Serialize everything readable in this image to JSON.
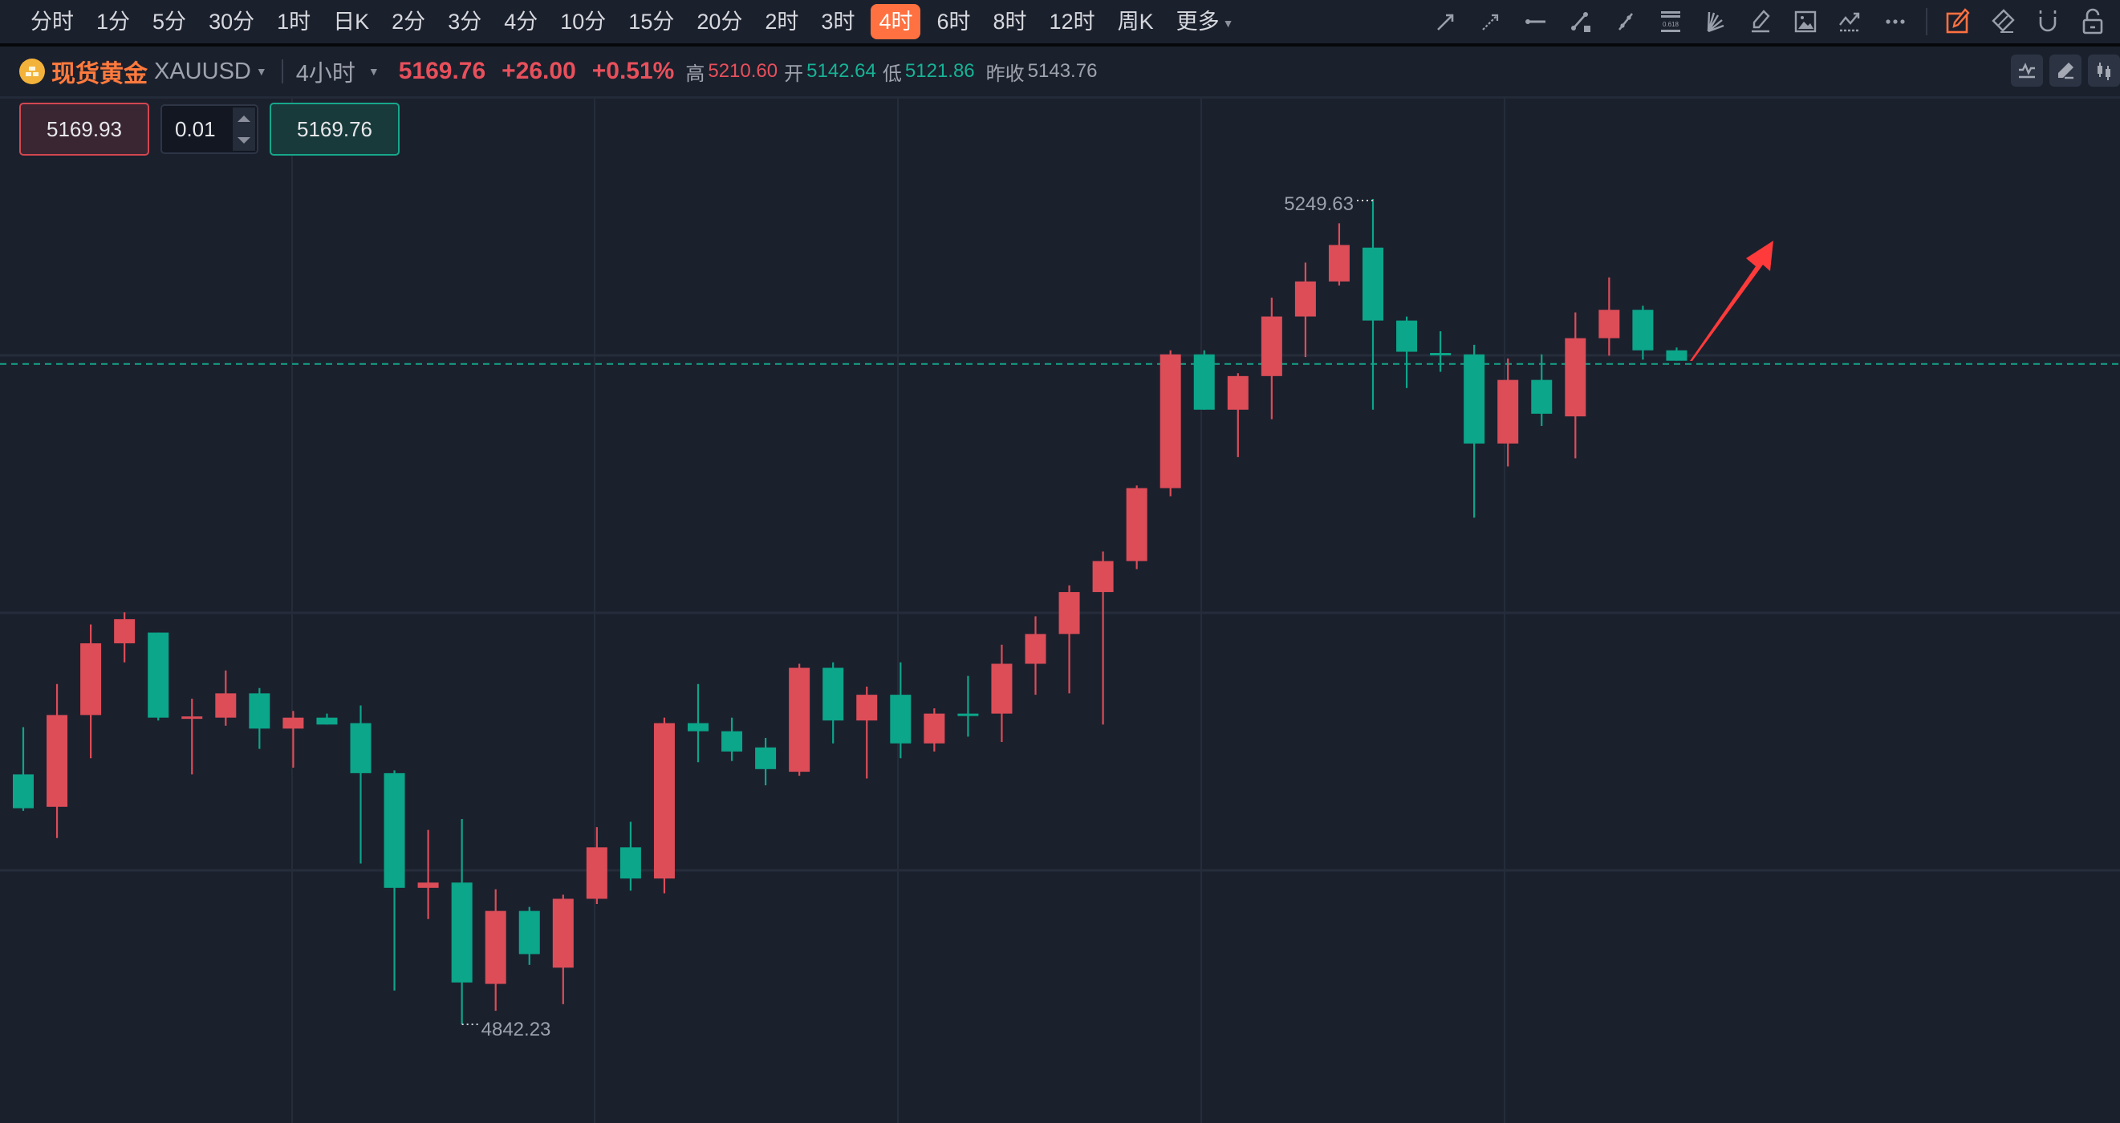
{
  "toolbar": {
    "periods": [
      {
        "label": "分时",
        "active": false
      },
      {
        "label": "1分",
        "active": false
      },
      {
        "label": "5分",
        "active": false
      },
      {
        "label": "30分",
        "active": false
      },
      {
        "label": "1时",
        "active": false
      },
      {
        "label": "日K",
        "active": false
      },
      {
        "label": "2分",
        "active": false
      },
      {
        "label": "3分",
        "active": false
      },
      {
        "label": "4分",
        "active": false
      },
      {
        "label": "10分",
        "active": false
      },
      {
        "label": "15分",
        "active": false
      },
      {
        "label": "20分",
        "active": false
      },
      {
        "label": "2时",
        "active": false
      },
      {
        "label": "3时",
        "active": false
      },
      {
        "label": "4时",
        "active": true
      },
      {
        "label": "6时",
        "active": false
      },
      {
        "label": "8时",
        "active": false
      },
      {
        "label": "12时",
        "active": false
      },
      {
        "label": "周K",
        "active": false
      },
      {
        "label": "更多",
        "active": false
      }
    ],
    "drawing_tools": [
      "trend-line-icon",
      "extended-line-icon",
      "horizontal-line-icon",
      "ray-icon",
      "parallel-channel-icon",
      "fibonacci-icon",
      "fan-icon",
      "highlighter-icon",
      "image-icon",
      "polyline-icon",
      "more-icon",
      "draw-mode-icon",
      "eraser-icon",
      "magnet-icon",
      "lock-icon"
    ],
    "active_tool": "draw-mode-icon",
    "accent_color": "#ff7140"
  },
  "symbol": {
    "name": "现货黄金",
    "code": "XAUUSD",
    "interval": "4小时",
    "last_price": "5169.76",
    "change": "+26.00",
    "change_pct": "+0.51%",
    "high_label": "高",
    "high": "5210.60",
    "open_label": "开",
    "open": "5142.64",
    "low_label": "低",
    "low": "5121.86",
    "prev_close_label": "昨收",
    "prev_close": "5143.76"
  },
  "right_buttons": [
    "indicator-icon",
    "draw-icon",
    "candle-type-icon"
  ],
  "trade": {
    "sell_price": "5169.93",
    "quantity": "0.01",
    "buy_price": "5169.76"
  },
  "colors": {
    "up": "#dc4d58",
    "down": "#0ca68a",
    "background": "#1b202d",
    "grid": "#252c3a",
    "arrow": "#ff3a3a"
  },
  "chart_data": {
    "type": "candlestick",
    "title": "现货黄金 XAUUSD 4小时",
    "xlabel": "",
    "ylabel": "",
    "convention": "red = up, green = down",
    "annotations": [
      {
        "label": "5249.63",
        "type": "max-high",
        "index": 40
      },
      {
        "label": "4842.23",
        "type": "min-low",
        "index": 13
      }
    ],
    "current_price_line": 5169.76,
    "ylim": [
      4780,
      5330
    ],
    "grid": true,
    "candles": [
      {
        "o": 4965.6,
        "h": 4988.9,
        "l": 4947.6,
        "c": 4948.9
      },
      {
        "o": 4949.6,
        "h": 5010.2,
        "l": 4934.2,
        "c": 4994.9
      },
      {
        "o": 4994.9,
        "h": 5039.6,
        "l": 4973.6,
        "c": 5030.3
      },
      {
        "o": 5030.3,
        "h": 5045.6,
        "l": 5020.9,
        "c": 5042.2
      },
      {
        "o": 5035.6,
        "h": 5035.6,
        "l": 4992.2,
        "c": 4993.6
      },
      {
        "o": 4993.6,
        "h": 5002.9,
        "l": 4965.6,
        "c": 4994.2
      },
      {
        "o": 4993.6,
        "h": 5016.9,
        "l": 4989.6,
        "c": 5005.6
      },
      {
        "o": 5005.6,
        "h": 5008.2,
        "l": 4978.2,
        "c": 4988.2
      },
      {
        "o": 4988.2,
        "h": 4996.9,
        "l": 4968.9,
        "c": 4993.6
      },
      {
        "o": 4993.6,
        "h": 4995.6,
        "l": 4990.2,
        "c": 4990.2
      },
      {
        "o": 4990.9,
        "h": 4999.6,
        "l": 4921.6,
        "c": 4966.2
      },
      {
        "o": 4966.2,
        "h": 4967.6,
        "l": 4858.9,
        "c": 4909.6
      },
      {
        "o": 4909.6,
        "h": 4938.2,
        "l": 4894.2,
        "c": 4912.2
      },
      {
        "o": 4912.2,
        "h": 4943.6,
        "l": 4842.23,
        "c": 4862.9
      },
      {
        "o": 4862.2,
        "h": 4908.9,
        "l": 4848.9,
        "c": 4898.2
      },
      {
        "o": 4898.2,
        "h": 4900.2,
        "l": 4871.6,
        "c": 4876.9
      },
      {
        "o": 4870.2,
        "h": 4906.2,
        "l": 4852.2,
        "c": 4904.2
      },
      {
        "o": 4904.2,
        "h": 4939.6,
        "l": 4901.6,
        "c": 4929.6
      },
      {
        "o": 4929.6,
        "h": 4942.2,
        "l": 4908.2,
        "c": 4914.2
      },
      {
        "o": 4914.2,
        "h": 4993.6,
        "l": 4906.9,
        "c": 4990.9
      },
      {
        "o": 4990.9,
        "h": 5010.2,
        "l": 4971.6,
        "c": 4986.9
      },
      {
        "o": 4986.9,
        "h": 4993.6,
        "l": 4972.2,
        "c": 4976.9
      },
      {
        "o": 4978.9,
        "h": 4983.6,
        "l": 4960.2,
        "c": 4968.2
      },
      {
        "o": 4966.9,
        "h": 5020.2,
        "l": 4964.9,
        "c": 5018.2
      },
      {
        "o": 5018.2,
        "h": 5020.9,
        "l": 4980.9,
        "c": 4992.2
      },
      {
        "o": 4992.2,
        "h": 5008.9,
        "l": 4963.6,
        "c": 5004.9
      },
      {
        "o": 5004.9,
        "h": 5020.9,
        "l": 4973.6,
        "c": 4980.9
      },
      {
        "o": 4980.9,
        "h": 4998.2,
        "l": 4976.9,
        "c": 4995.6
      },
      {
        "o": 4995.6,
        "h": 5014.2,
        "l": 4984.2,
        "c": 4994.6
      },
      {
        "o": 4995.6,
        "h": 5029.6,
        "l": 4981.6,
        "c": 5020.2
      },
      {
        "o": 5020.2,
        "h": 5043.6,
        "l": 5004.9,
        "c": 5034.9
      },
      {
        "o": 5034.9,
        "h": 5058.9,
        "l": 5005.6,
        "c": 5055.6
      },
      {
        "o": 5055.6,
        "h": 5075.6,
        "l": 4990.2,
        "c": 5070.9
      },
      {
        "o": 5070.9,
        "h": 5108.2,
        "l": 5066.9,
        "c": 5106.9
      },
      {
        "o": 5106.9,
        "h": 5174.9,
        "l": 5102.9,
        "c": 5172.9
      },
      {
        "o": 5172.9,
        "h": 5174.9,
        "l": 5145.6,
        "c": 5145.6
      },
      {
        "o": 5145.6,
        "h": 5163.6,
        "l": 5122.2,
        "c": 5162.2
      },
      {
        "o": 5162.2,
        "h": 5200.9,
        "l": 5140.9,
        "c": 5191.6
      },
      {
        "o": 5191.6,
        "h": 5218.2,
        "l": 5171.6,
        "c": 5208.9
      },
      {
        "o": 5208.9,
        "h": 5237.6,
        "l": 5206.9,
        "c": 5226.9
      },
      {
        "o": 5225.6,
        "h": 5249.63,
        "l": 5145.6,
        "c": 5189.6
      },
      {
        "o": 5189.6,
        "h": 5191.6,
        "l": 5156.3,
        "c": 5174.2
      },
      {
        "o": 5173.6,
        "h": 5184.3,
        "l": 5164.3,
        "c": 5172.9
      },
      {
        "o": 5172.9,
        "h": 5177.6,
        "l": 5092.3,
        "c": 5128.9
      },
      {
        "o": 5128.9,
        "h": 5170.9,
        "l": 5117.6,
        "c": 5160.3
      },
      {
        "o": 5160.3,
        "h": 5172.9,
        "l": 5137.6,
        "c": 5143.6
      },
      {
        "o": 5142.3,
        "h": 5193.6,
        "l": 5121.6,
        "c": 5180.9
      },
      {
        "o": 5180.9,
        "h": 5210.9,
        "l": 5172.3,
        "c": 5194.9
      },
      {
        "o": 5194.9,
        "h": 5196.9,
        "l": 5170.3,
        "c": 5174.9
      },
      {
        "o": 5174.9,
        "h": 5176.3,
        "l": 5169.76,
        "c": 5169.76
      }
    ]
  }
}
